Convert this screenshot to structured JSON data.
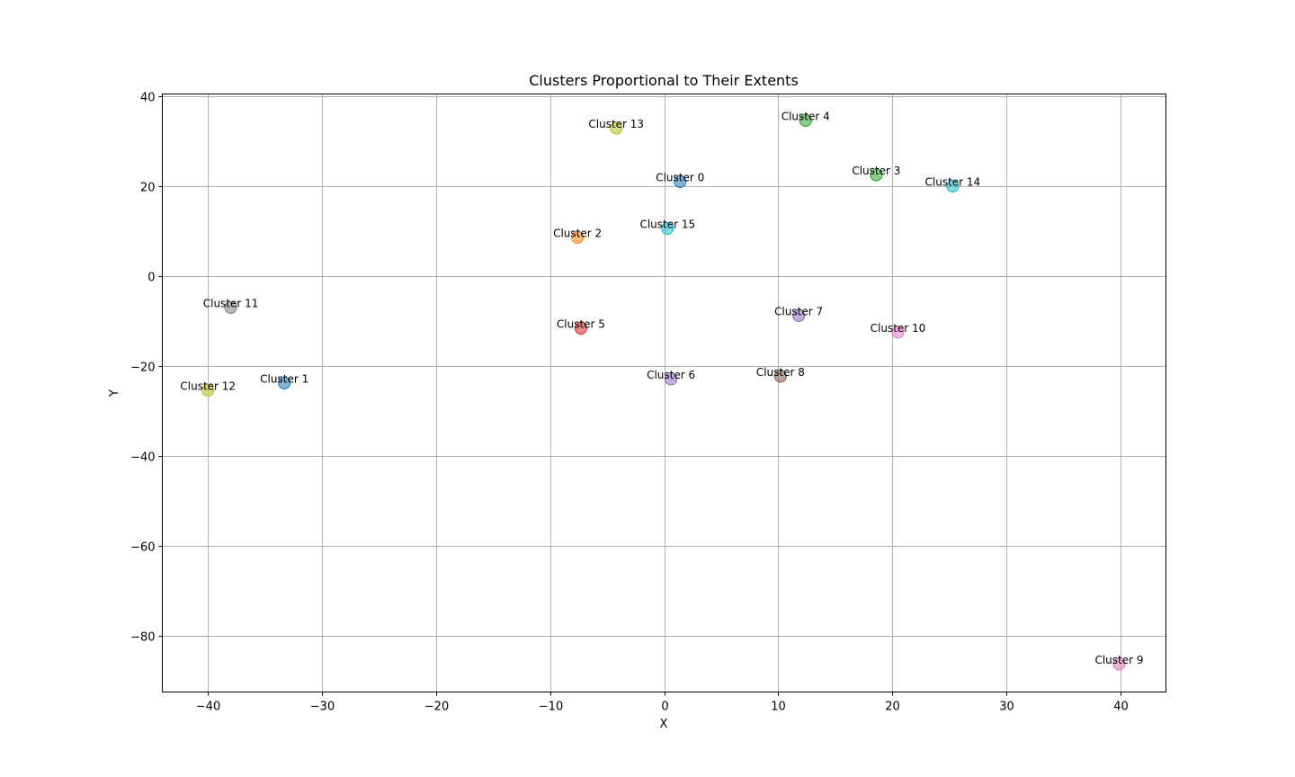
{
  "chart_data": {
    "type": "scatter",
    "title": "Clusters Proportional to Their Extents",
    "xlabel": "X",
    "ylabel": "Y",
    "xlim": [
      -44,
      44
    ],
    "ylim": [
      -92.5,
      40.5
    ],
    "xticks": [
      -40,
      -30,
      -20,
      -10,
      0,
      10,
      20,
      30,
      40
    ],
    "yticks": [
      40,
      20,
      0,
      -20,
      -40,
      -60,
      -80
    ],
    "grid": true,
    "marker_alpha": 0.55,
    "points": [
      {
        "label": "Cluster 0",
        "x": 1.4,
        "y": 21.0,
        "color": "#1f77b4"
      },
      {
        "label": "Cluster 1",
        "x": -33.3,
        "y": -23.8,
        "color": "#1f77b4"
      },
      {
        "label": "Cluster 2",
        "x": -7.6,
        "y": 8.6,
        "color": "#ff7f0e"
      },
      {
        "label": "Cluster 3",
        "x": 18.6,
        "y": 22.5,
        "color": "#2ca02c"
      },
      {
        "label": "Cluster 4",
        "x": 12.4,
        "y": 34.6,
        "color": "#2ca02c"
      },
      {
        "label": "Cluster 5",
        "x": -7.3,
        "y": -11.6,
        "color": "#d62728"
      },
      {
        "label": "Cluster 6",
        "x": 0.6,
        "y": -22.9,
        "color": "#9467bd"
      },
      {
        "label": "Cluster 7",
        "x": 11.8,
        "y": -8.8,
        "color": "#9467bd"
      },
      {
        "label": "Cluster 8",
        "x": 10.2,
        "y": -22.3,
        "color": "#8c564b"
      },
      {
        "label": "Cluster 9",
        "x": 39.9,
        "y": -86.3,
        "color": "#e377c2"
      },
      {
        "label": "Cluster 10",
        "x": 20.5,
        "y": -12.5,
        "color": "#e377c2"
      },
      {
        "label": "Cluster 11",
        "x": -38.0,
        "y": -7.0,
        "color": "#7f7f7f"
      },
      {
        "label": "Cluster 12",
        "x": -40.0,
        "y": -25.4,
        "color": "#bcbd22"
      },
      {
        "label": "Cluster 13",
        "x": -4.2,
        "y": 32.9,
        "color": "#bcbd22"
      },
      {
        "label": "Cluster 14",
        "x": 25.3,
        "y": 20.0,
        "color": "#17becf"
      },
      {
        "label": "Cluster 15",
        "x": 0.3,
        "y": 10.6,
        "color": "#17becf"
      }
    ]
  }
}
